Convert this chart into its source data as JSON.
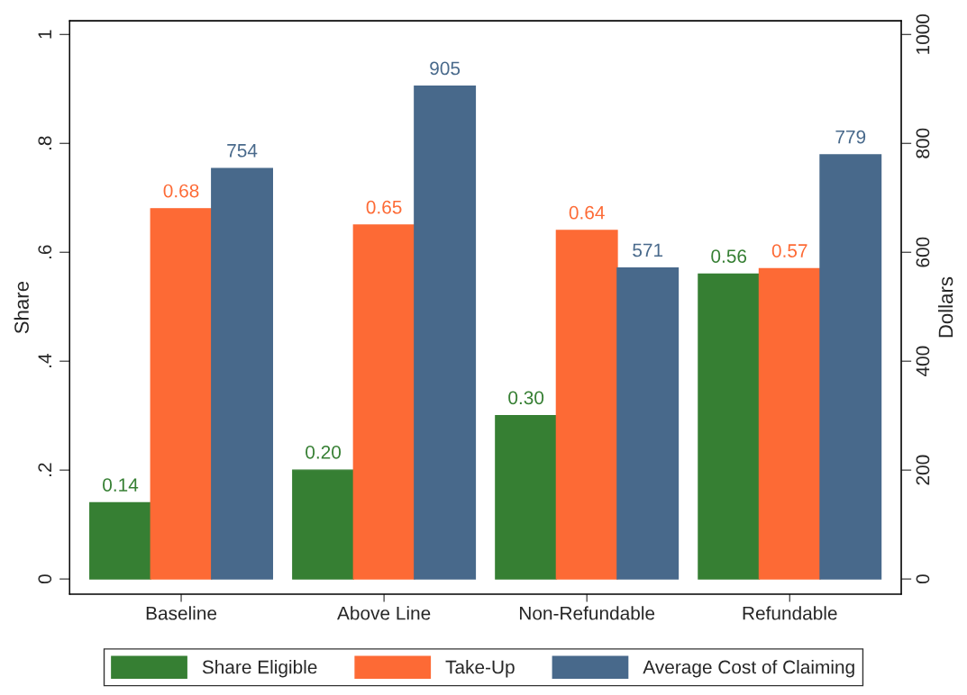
{
  "chart_data": {
    "type": "bar",
    "categories": [
      "Baseline",
      "Above Line",
      "Non-Refundable",
      "Refundable"
    ],
    "series": [
      {
        "name": "Share Eligible",
        "color": "#367f33",
        "values": [
          0.14,
          0.2,
          0.3,
          0.56
        ],
        "value_labels": [
          "0.14",
          "0.20",
          "0.30",
          "0.56"
        ]
      },
      {
        "name": "Take-Up",
        "color": "#fd6a35",
        "values": [
          0.68,
          0.65,
          0.64,
          0.57
        ],
        "value_labels": [
          "0.68",
          "0.65",
          "0.64",
          "0.57"
        ]
      },
      {
        "name": "Average Cost of Claiming",
        "color": "#48698b",
        "axis": "y2",
        "values": [
          754,
          905,
          571,
          779
        ],
        "value_labels": [
          "754",
          "905",
          "571",
          "779"
        ]
      }
    ],
    "ylabel": "Share",
    "y2label": "Dollars",
    "ylim": [
      -0.028,
      1.025
    ],
    "yticks": [
      {
        "value": 0,
        "label": "0"
      },
      {
        "value": 0.2,
        "label": ".2"
      },
      {
        "value": 0.4,
        "label": ".4"
      },
      {
        "value": 0.6,
        "label": ".6"
      },
      {
        "value": 0.8,
        "label": ".8"
      },
      {
        "value": 1,
        "label": "1"
      }
    ],
    "y2lim": [
      -28,
      1025
    ],
    "y2ticks": [
      0,
      200,
      400,
      600,
      800,
      1000
    ],
    "grid": false,
    "legend": "bottom"
  }
}
